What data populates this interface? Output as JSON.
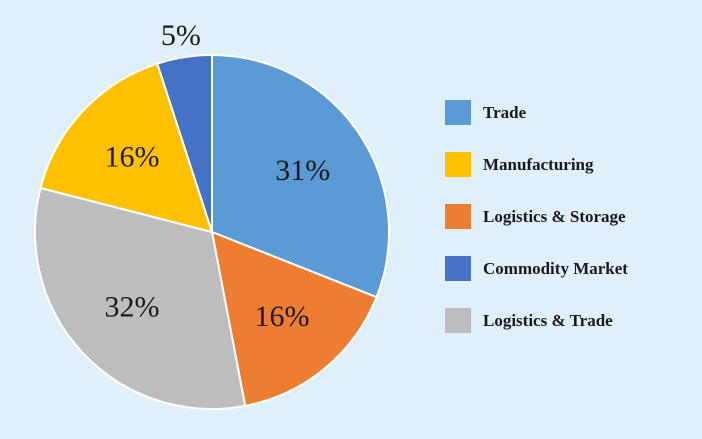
{
  "chart_data": {
    "type": "pie",
    "title": "",
    "slices": [
      {
        "label": "Trade",
        "value": 31,
        "display": "31%",
        "color": "#5b9bd5"
      },
      {
        "label": "Logistics & Storage",
        "value": 16,
        "display": "16%",
        "color": "#ed7d31"
      },
      {
        "label": "Logistics & Trade",
        "value": 32,
        "display": "32%",
        "color": "#bdbdbd"
      },
      {
        "label": "Manufacturing",
        "value": 16,
        "display": "16%",
        "color": "#ffc000"
      },
      {
        "label": "Commodity Market",
        "value": 5,
        "display": "5%",
        "color": "#4472c4"
      }
    ],
    "legend": {
      "position": "right",
      "items": [
        {
          "label": "Trade",
          "color": "#5b9bd5"
        },
        {
          "label": "Manufacturing",
          "color": "#ffc000"
        },
        {
          "label": "Logistics & Storage",
          "color": "#ed7d31"
        },
        {
          "label": "Commodity Market",
          "color": "#4472c4"
        },
        {
          "label": "Logistics & Trade",
          "color": "#bdbdbd"
        }
      ]
    }
  }
}
